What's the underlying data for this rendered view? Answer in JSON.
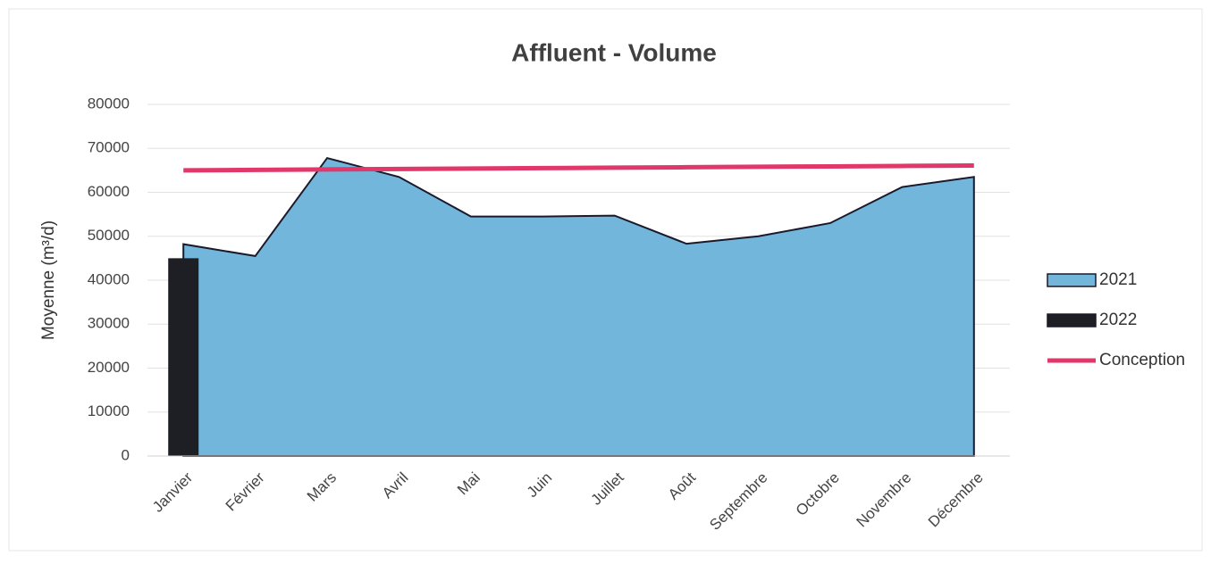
{
  "chart_data": {
    "type": "area",
    "title": "Affluent - Volume",
    "y_label": "Moyenne (m³/d)",
    "categories": [
      "Janvier",
      "Février",
      "Mars",
      "Avril",
      "Mai",
      "Juin",
      "Juillet",
      "Août",
      "Septembre",
      "Octobre",
      "Novembre",
      "Décembre"
    ],
    "series": [
      {
        "name": "2021",
        "type": "area",
        "color": "#72b6dc",
        "values": [
          48200,
          45500,
          67800,
          63500,
          54500,
          54500,
          54700,
          48300,
          50000,
          53000,
          61200,
          63500
        ]
      },
      {
        "name": "2022",
        "type": "bar",
        "color": "#1e1f24",
        "values": [
          45000,
          null,
          null,
          null,
          null,
          null,
          null,
          null,
          null,
          null,
          null,
          null
        ]
      },
      {
        "name": "Conception",
        "type": "line",
        "color": "#e0386a",
        "values": [
          65000,
          65100,
          65200,
          65300,
          65400,
          65500,
          65600,
          65700,
          65800,
          65900,
          66000,
          66100
        ]
      }
    ],
    "ylim": [
      0,
      80000
    ],
    "yticks": [
      0,
      10000,
      20000,
      30000,
      40000,
      50000,
      60000,
      70000,
      80000
    ],
    "grid": true,
    "legend": "right"
  }
}
